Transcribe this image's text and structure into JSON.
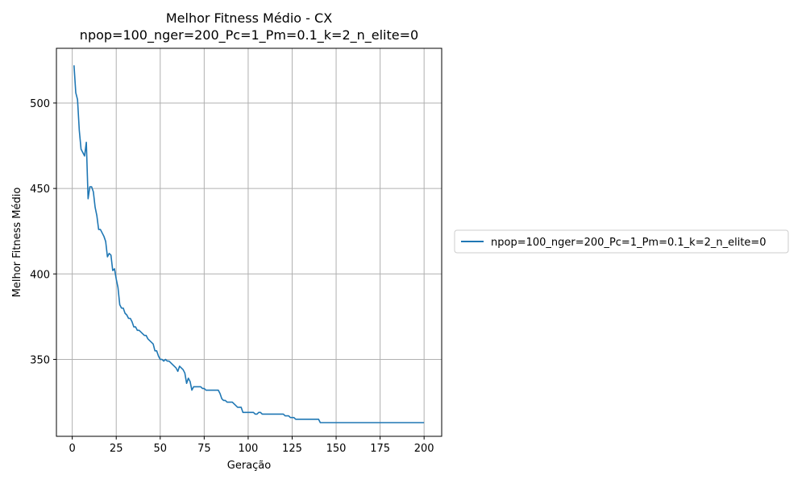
{
  "chart_data": {
    "type": "line",
    "title": "Melhor Fitness Médio - CX",
    "subtitle": "npop=100_nger=200_Pc=1_Pm=0.1_k=2_n_elite=0",
    "xlabel": "Geração",
    "ylabel": "Melhor Fitness Médio",
    "xlim": [
      -9,
      210
    ],
    "ylim": [
      305,
      532
    ],
    "xticks": [
      0,
      25,
      50,
      75,
      100,
      125,
      150,
      175,
      200
    ],
    "yticks": [
      350,
      400,
      450,
      500
    ],
    "grid": true,
    "legend_position": "right",
    "series": [
      {
        "name": "npop=100_nger=200_Pc=1_Pm=0.1_k=2_n_elite=0",
        "color": "#1f77b4",
        "x": [
          1,
          2,
          3,
          4,
          5,
          6,
          7,
          8,
          9,
          10,
          11,
          12,
          13,
          14,
          15,
          16,
          17,
          18,
          19,
          20,
          21,
          22,
          23,
          24,
          25,
          26,
          27,
          28,
          29,
          30,
          31,
          32,
          33,
          34,
          35,
          36,
          37,
          38,
          39,
          40,
          41,
          42,
          43,
          44,
          45,
          46,
          47,
          48,
          49,
          50,
          51,
          52,
          53,
          54,
          55,
          56,
          57,
          58,
          59,
          60,
          61,
          62,
          63,
          64,
          65,
          66,
          67,
          68,
          69,
          70,
          71,
          72,
          73,
          74,
          75,
          76,
          77,
          78,
          79,
          80,
          81,
          82,
          83,
          84,
          85,
          86,
          87,
          88,
          89,
          90,
          91,
          92,
          93,
          94,
          95,
          96,
          97,
          98,
          99,
          100,
          101,
          102,
          103,
          104,
          105,
          106,
          107,
          108,
          109,
          110,
          111,
          112,
          113,
          114,
          115,
          116,
          117,
          118,
          119,
          120,
          121,
          122,
          123,
          124,
          125,
          126,
          127,
          128,
          129,
          130,
          131,
          132,
          133,
          134,
          135,
          136,
          137,
          138,
          139,
          140,
          141,
          142,
          143,
          144,
          145,
          146,
          147,
          148,
          149,
          150,
          151,
          152,
          153,
          154,
          155,
          156,
          157,
          158,
          159,
          160,
          161,
          162,
          163,
          164,
          165,
          166,
          167,
          168,
          169,
          170,
          171,
          172,
          173,
          174,
          175,
          176,
          177,
          178,
          179,
          180,
          181,
          182,
          183,
          184,
          185,
          186,
          187,
          188,
          189,
          190,
          191,
          192,
          193,
          194,
          195,
          196,
          197,
          198,
          199,
          200
        ],
        "y": [
          522,
          506,
          502,
          484,
          473,
          471,
          469,
          477,
          444,
          451,
          451,
          448,
          439,
          434,
          426,
          426,
          424,
          422,
          419,
          410,
          412,
          411,
          402,
          403,
          397,
          392,
          382,
          380,
          380,
          377,
          376,
          374,
          374,
          372,
          369,
          369,
          367,
          367,
          366,
          365,
          364,
          364,
          362,
          361,
          360,
          359,
          355,
          355,
          352,
          350,
          350,
          349,
          350,
          349,
          349,
          348,
          347,
          346,
          345,
          343,
          346,
          345,
          344,
          342,
          336,
          339,
          337,
          332,
          334,
          334,
          334,
          334,
          334,
          333,
          333,
          332,
          332,
          332,
          332,
          332,
          332,
          332,
          332,
          330,
          327,
          326,
          326,
          325,
          325,
          325,
          325,
          324,
          323,
          322,
          322,
          322,
          319,
          319,
          319,
          319,
          319,
          319,
          319,
          318,
          318,
          319,
          319,
          318,
          318,
          318,
          318,
          318,
          318,
          318,
          318,
          318,
          318,
          318,
          318,
          318,
          317,
          317,
          317,
          316,
          316,
          316,
          315,
          315,
          315,
          315,
          315,
          315,
          315,
          315,
          315,
          315,
          315,
          315,
          315,
          315,
          313,
          313,
          313,
          313,
          313,
          313,
          313,
          313,
          313,
          313,
          313,
          313,
          313,
          313,
          313,
          313,
          313,
          313,
          313,
          313,
          313,
          313,
          313,
          313,
          313,
          313,
          313,
          313,
          313,
          313,
          313,
          313,
          313,
          313,
          313,
          313,
          313,
          313,
          313,
          313,
          313,
          313,
          313,
          313,
          313,
          313,
          313,
          313,
          313,
          313,
          313,
          313,
          313,
          313,
          313,
          313,
          313,
          313,
          313,
          313
        ]
      }
    ]
  }
}
